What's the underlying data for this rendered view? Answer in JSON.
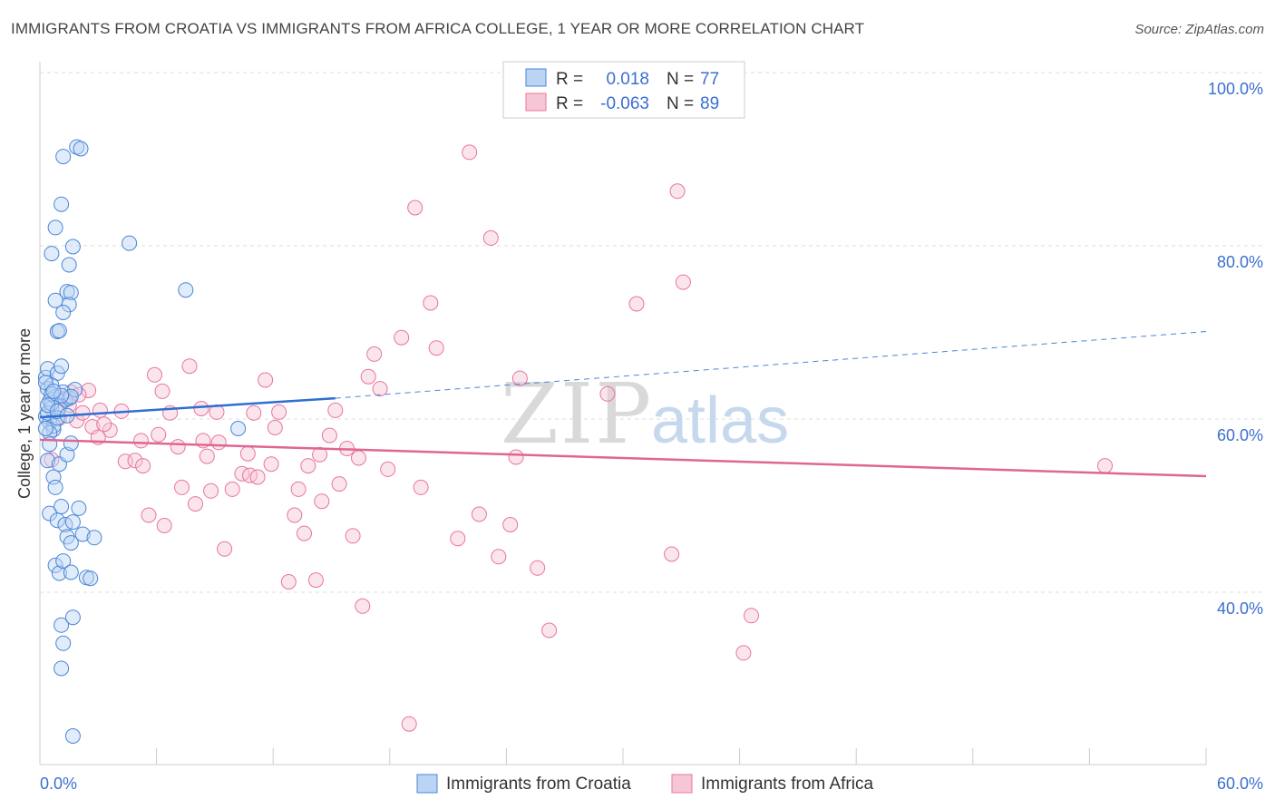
{
  "title": "IMMIGRANTS FROM CROATIA VS IMMIGRANTS FROM AFRICA COLLEGE, 1 YEAR OR MORE CORRELATION CHART",
  "source": "Source: ZipAtlas.com",
  "watermark": {
    "zip": "ZIP",
    "atlas": "atlas"
  },
  "chart_data": {
    "type": "scatter",
    "title": "IMMIGRANTS FROM CROATIA VS IMMIGRANTS FROM AFRICA COLLEGE, 1 YEAR OR MORE CORRELATION CHART",
    "xlabel": "",
    "ylabel": "College, 1 year or more",
    "xlim": [
      0,
      60
    ],
    "ylim": [
      20,
      103
    ],
    "x_tick_labels": {
      "left": "0.0%",
      "right": "60.0%"
    },
    "y_ticks": [
      {
        "value": 100,
        "label": "100.0%"
      },
      {
        "value": 80,
        "label": "80.0%"
      },
      {
        "value": 60,
        "label": "60.0%"
      },
      {
        "value": 40,
        "label": "40.0%"
      }
    ],
    "grid": "horizontal dashed",
    "legend_placement": "top-center and bottom-center",
    "colors": {
      "croatia": "#4a86d8",
      "africa": "#e8759c",
      "croatia_fill": "#bcd4f4",
      "africa_fill": "#f7c6d6"
    },
    "stats": [
      {
        "r_label": "R =",
        "r_value": "0.018",
        "n_label": "N =",
        "n_value": "77"
      },
      {
        "r_label": "R =",
        "r_value": "-0.063",
        "n_label": "N =",
        "n_value": "89"
      }
    ],
    "series": [
      {
        "name": "Immigrants from Croatia",
        "trend": {
          "x1": 0,
          "y1": 60.2,
          "x2": 15.2,
          "y2": 62.4,
          "dash_to_x": 60,
          "dash_to_y": 70.1
        },
        "points": [
          [
            0.3,
            64.8
          ],
          [
            0.4,
            63.5
          ],
          [
            0.5,
            62.1
          ],
          [
            0.6,
            61.2
          ],
          [
            0.3,
            60.3
          ],
          [
            0.5,
            59.6
          ],
          [
            0.7,
            58.8
          ],
          [
            0.4,
            65.8
          ],
          [
            0.9,
            65.3
          ],
          [
            1.1,
            66.1
          ],
          [
            0.6,
            63.9
          ],
          [
            0.8,
            62.6
          ],
          [
            1.0,
            61.4
          ],
          [
            1.3,
            62.2
          ],
          [
            0.4,
            60.7
          ],
          [
            0.7,
            59.2
          ],
          [
            0.5,
            58.4
          ],
          [
            1.5,
            62.4
          ],
          [
            1.2,
            63.1
          ],
          [
            0.3,
            64.2
          ],
          [
            0.9,
            60.1
          ],
          [
            1.8,
            63.4
          ],
          [
            1.6,
            62.6
          ],
          [
            0.6,
            61.8
          ],
          [
            0.5,
            57.1
          ],
          [
            0.4,
            55.2
          ],
          [
            1.0,
            54.8
          ],
          [
            1.4,
            55.9
          ],
          [
            0.7,
            53.3
          ],
          [
            1.6,
            57.2
          ],
          [
            0.8,
            52.1
          ],
          [
            0.5,
            49.1
          ],
          [
            0.9,
            48.3
          ],
          [
            1.1,
            49.9
          ],
          [
            1.3,
            47.8
          ],
          [
            1.7,
            48.1
          ],
          [
            2.0,
            49.7
          ],
          [
            1.4,
            46.4
          ],
          [
            2.2,
            46.7
          ],
          [
            1.6,
            45.7
          ],
          [
            2.8,
            46.3
          ],
          [
            0.8,
            43.1
          ],
          [
            1.0,
            42.2
          ],
          [
            1.2,
            43.6
          ],
          [
            1.6,
            42.3
          ],
          [
            2.4,
            41.7
          ],
          [
            2.6,
            41.6
          ],
          [
            1.1,
            36.2
          ],
          [
            1.7,
            37.1
          ],
          [
            1.2,
            34.1
          ],
          [
            1.1,
            31.2
          ],
          [
            1.7,
            23.4
          ],
          [
            1.2,
            90.3
          ],
          [
            1.9,
            91.4
          ],
          [
            2.1,
            91.2
          ],
          [
            1.1,
            84.8
          ],
          [
            0.8,
            82.1
          ],
          [
            1.7,
            79.9
          ],
          [
            0.6,
            79.1
          ],
          [
            1.5,
            77.8
          ],
          [
            4.6,
            80.3
          ],
          [
            1.4,
            74.7
          ],
          [
            1.6,
            74.6
          ],
          [
            0.8,
            73.7
          ],
          [
            1.5,
            73.2
          ],
          [
            1.2,
            72.3
          ],
          [
            0.9,
            70.1
          ],
          [
            1.0,
            70.2
          ],
          [
            7.5,
            74.9
          ],
          [
            10.2,
            58.9
          ],
          [
            0.6,
            62.9
          ],
          [
            0.4,
            61.6
          ],
          [
            1.1,
            62.7
          ],
          [
            0.7,
            63.2
          ],
          [
            0.9,
            60.9
          ],
          [
            1.4,
            60.4
          ],
          [
            0.3,
            58.9
          ]
        ]
      },
      {
        "name": "Immigrants from Africa",
        "trend": {
          "x1": 0,
          "y1": 57.6,
          "x2": 60,
          "y2": 53.4
        },
        "points": [
          [
            0.6,
            55.3
          ],
          [
            1.0,
            60.1
          ],
          [
            1.3,
            62.4
          ],
          [
            1.6,
            63.1
          ],
          [
            1.9,
            59.8
          ],
          [
            2.2,
            60.7
          ],
          [
            2.5,
            63.3
          ],
          [
            2.7,
            59.1
          ],
          [
            3.1,
            61.0
          ],
          [
            3.6,
            58.7
          ],
          [
            3.3,
            59.4
          ],
          [
            4.2,
            60.9
          ],
          [
            4.4,
            55.1
          ],
          [
            4.9,
            55.2
          ],
          [
            5.2,
            57.5
          ],
          [
            5.3,
            54.6
          ],
          [
            5.6,
            48.9
          ],
          [
            5.9,
            65.1
          ],
          [
            6.1,
            58.2
          ],
          [
            6.3,
            63.2
          ],
          [
            6.4,
            47.7
          ],
          [
            6.7,
            60.7
          ],
          [
            7.1,
            56.8
          ],
          [
            7.3,
            52.1
          ],
          [
            7.7,
            66.1
          ],
          [
            8.0,
            50.2
          ],
          [
            8.4,
            57.5
          ],
          [
            8.6,
            55.7
          ],
          [
            8.8,
            51.7
          ],
          [
            9.1,
            60.8
          ],
          [
            9.2,
            57.3
          ],
          [
            9.5,
            45.0
          ],
          [
            9.9,
            51.9
          ],
          [
            10.4,
            53.7
          ],
          [
            10.7,
            56.0
          ],
          [
            10.8,
            53.5
          ],
          [
            11.0,
            60.7
          ],
          [
            11.2,
            53.3
          ],
          [
            11.6,
            64.5
          ],
          [
            11.9,
            54.8
          ],
          [
            12.1,
            59.0
          ],
          [
            12.3,
            60.8
          ],
          [
            12.8,
            41.2
          ],
          [
            13.1,
            48.9
          ],
          [
            13.3,
            51.9
          ],
          [
            13.6,
            46.8
          ],
          [
            13.8,
            54.6
          ],
          [
            14.2,
            41.4
          ],
          [
            14.4,
            55.9
          ],
          [
            14.5,
            50.5
          ],
          [
            14.9,
            58.1
          ],
          [
            15.2,
            61.0
          ],
          [
            15.4,
            52.5
          ],
          [
            15.8,
            56.6
          ],
          [
            16.1,
            46.5
          ],
          [
            16.4,
            55.5
          ],
          [
            16.6,
            38.4
          ],
          [
            16.9,
            64.9
          ],
          [
            17.2,
            67.5
          ],
          [
            17.5,
            63.5
          ],
          [
            17.9,
            54.2
          ],
          [
            18.6,
            69.4
          ],
          [
            19.0,
            24.8
          ],
          [
            19.3,
            84.4
          ],
          [
            19.6,
            52.1
          ],
          [
            20.1,
            73.4
          ],
          [
            20.4,
            68.2
          ],
          [
            21.5,
            46.2
          ],
          [
            22.1,
            90.8
          ],
          [
            22.6,
            49.0
          ],
          [
            23.2,
            80.9
          ],
          [
            23.6,
            44.1
          ],
          [
            24.2,
            47.8
          ],
          [
            24.5,
            55.6
          ],
          [
            24.7,
            64.7
          ],
          [
            25.6,
            42.8
          ],
          [
            26.2,
            35.6
          ],
          [
            29.2,
            62.9
          ],
          [
            30.7,
            73.3
          ],
          [
            32.8,
            86.3
          ],
          [
            32.5,
            44.4
          ],
          [
            33.1,
            75.8
          ],
          [
            36.2,
            33.0
          ],
          [
            36.6,
            37.3
          ],
          [
            54.8,
            54.6
          ],
          [
            2.0,
            62.8
          ],
          [
            8.3,
            61.2
          ],
          [
            1.5,
            61.6
          ],
          [
            3.0,
            57.9
          ]
        ]
      }
    ]
  },
  "legend": {
    "top": [
      {
        "r_label": "R =",
        "r_value": "0.018",
        "n_label": "N =",
        "n_value": "77"
      },
      {
        "r_label": "R =",
        "r_value": "-0.063",
        "n_label": "N =",
        "n_value": "89"
      }
    ],
    "bottom": [
      {
        "label": "Immigrants from Croatia"
      },
      {
        "label": "Immigrants from Africa"
      }
    ]
  }
}
